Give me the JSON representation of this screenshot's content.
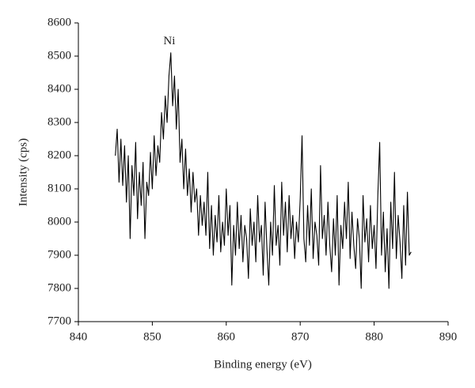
{
  "chart_data": {
    "type": "line",
    "xlabel": "Binding energy (eV)",
    "ylabel": "Intensity (cps)",
    "annotations": [
      {
        "text": "Ni",
        "x": 852.3,
        "y": 8530
      }
    ],
    "color": "#000000",
    "xlim": [
      840,
      890
    ],
    "xticks": [
      840,
      850,
      860,
      870,
      880,
      890
    ],
    "ylim": [
      7700,
      8600
    ],
    "yticks": [
      7700,
      7800,
      7900,
      8000,
      8100,
      8200,
      8300,
      8400,
      8500,
      8600
    ],
    "x": [
      845,
      845.25,
      845.5,
      845.75,
      846,
      846.25,
      846.5,
      846.75,
      847,
      847.25,
      847.5,
      847.75,
      848,
      848.25,
      848.5,
      848.75,
      849,
      849.25,
      849.5,
      849.75,
      850,
      850.25,
      850.5,
      850.75,
      851,
      851.25,
      851.5,
      851.75,
      852,
      852.25,
      852.5,
      852.75,
      853,
      853.25,
      853.5,
      853.75,
      854,
      854.25,
      854.5,
      854.75,
      855,
      855.25,
      855.5,
      855.75,
      856,
      856.25,
      856.5,
      856.75,
      857,
      857.25,
      857.5,
      857.75,
      858,
      858.25,
      858.5,
      858.75,
      859,
      859.25,
      859.5,
      859.75,
      860,
      860.25,
      860.5,
      860.75,
      861,
      861.25,
      861.5,
      861.75,
      862,
      862.25,
      862.5,
      862.75,
      863,
      863.25,
      863.5,
      863.75,
      864,
      864.25,
      864.5,
      864.75,
      865,
      865.25,
      865.5,
      865.75,
      866,
      866.25,
      866.5,
      866.75,
      867,
      867.25,
      867.5,
      867.75,
      868,
      868.25,
      868.5,
      868.75,
      869,
      869.25,
      869.5,
      869.75,
      870,
      870.25,
      870.5,
      870.75,
      871,
      871.25,
      871.5,
      871.75,
      872,
      872.25,
      872.5,
      872.75,
      873,
      873.25,
      873.5,
      873.75,
      874,
      874.25,
      874.5,
      874.75,
      875,
      875.25,
      875.5,
      875.75,
      876,
      876.25,
      876.5,
      876.75,
      877,
      877.25,
      877.5,
      877.75,
      878,
      878.25,
      878.5,
      878.75,
      879,
      879.25,
      879.5,
      879.75,
      880,
      880.25,
      880.5,
      880.75,
      881,
      881.25,
      881.5,
      881.75,
      882,
      882.25,
      882.5,
      882.75,
      883,
      883.25,
      883.5,
      883.75,
      884,
      884.25,
      884.5,
      884.75,
      885
    ],
    "values": [
      8200,
      8280,
      8120,
      8250,
      8110,
      8230,
      8060,
      8200,
      7950,
      8170,
      8080,
      8240,
      8010,
      8150,
      8050,
      8180,
      7950,
      8120,
      8080,
      8210,
      8100,
      8260,
      8140,
      8230,
      8180,
      8330,
      8250,
      8380,
      8300,
      8440,
      8510,
      8350,
      8440,
      8280,
      8400,
      8180,
      8250,
      8100,
      8220,
      8080,
      8160,
      8030,
      8150,
      8060,
      8100,
      7960,
      8080,
      7990,
      8060,
      7960,
      8150,
      7920,
      8050,
      7900,
      8020,
      7940,
      8080,
      7910,
      8000,
      7930,
      8100,
      7960,
      8050,
      7810,
      7990,
      7900,
      8060,
      7920,
      8020,
      7880,
      7990,
      7950,
      7830,
      8040,
      7930,
      8000,
      7880,
      8080,
      7940,
      7990,
      7840,
      8060,
      7920,
      7810,
      8000,
      7900,
      8110,
      7930,
      7990,
      7870,
      8120,
      7960,
      8060,
      7910,
      8080,
      7950,
      8020,
      7890,
      8000,
      7940,
      8070,
      8260,
      7950,
      7880,
      8050,
      7930,
      8100,
      7890,
      8000,
      7960,
      7870,
      8170,
      7950,
      8020,
      7900,
      8060,
      7930,
      7850,
      8010,
      7900,
      8080,
      7810,
      7990,
      7920,
      8060,
      7950,
      8120,
      7890,
      8030,
      7930,
      7860,
      8010,
      7950,
      7800,
      8080,
      7940,
      8010,
      7880,
      8050,
      7920,
      7990,
      7860,
      8080,
      8240,
      7900,
      8030,
      7850,
      7980,
      7800,
      8060,
      7920,
      8150,
      7890,
      8020,
      7940,
      7830,
      8050,
      7870,
      8090,
      7900,
      7910
    ]
  }
}
